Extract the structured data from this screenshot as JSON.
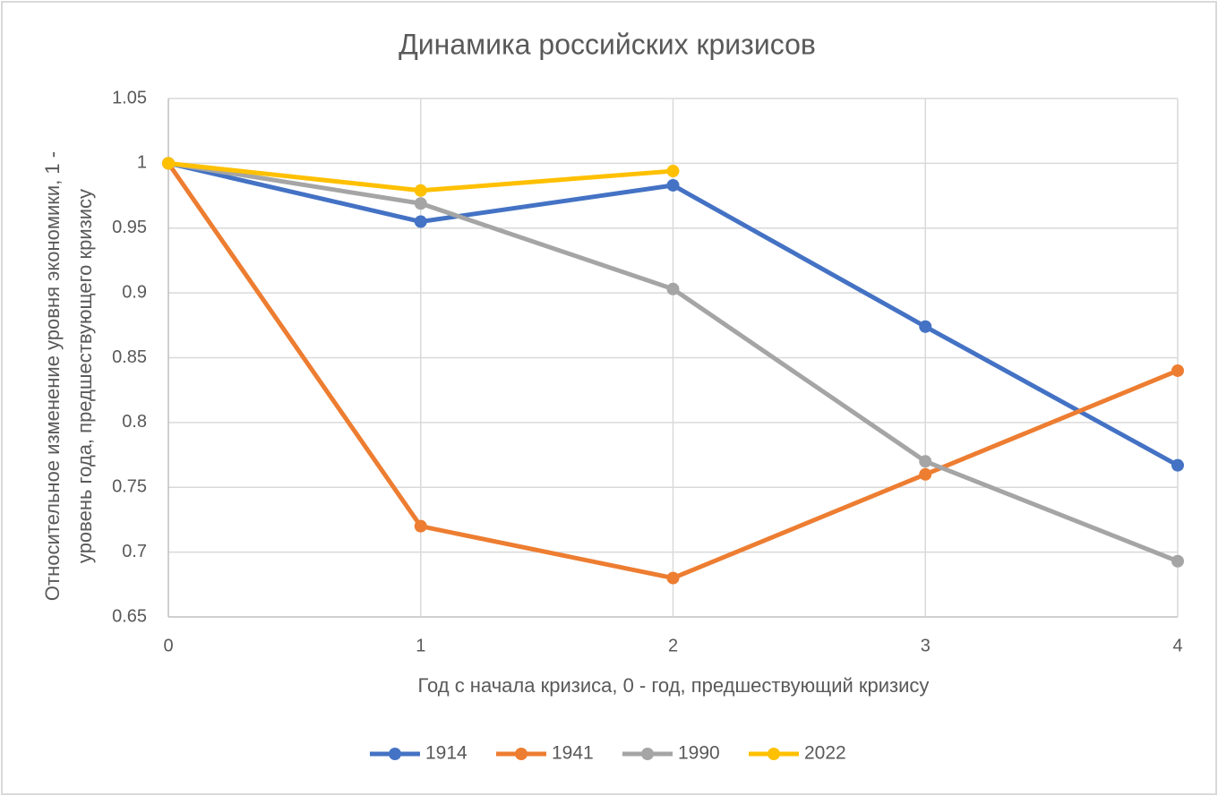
{
  "chart_data": {
    "type": "line",
    "title": "Динамика российских кризисов",
    "xlabel": "Год с начала кризиса, 0 - год, предшествующий кризису",
    "ylabel": [
      "Относительное изменение уровня экономики, 1 -",
      "уровень года, предшествующего кризису"
    ],
    "x": [
      0,
      1,
      2,
      3,
      4
    ],
    "series": [
      {
        "name": "1914",
        "color": "#4472c4",
        "values": [
          1,
          0.955,
          0.983,
          0.874,
          0.767
        ]
      },
      {
        "name": "1941",
        "color": "#ed7d31",
        "values": [
          1,
          0.72,
          0.68,
          0.76,
          0.84
        ]
      },
      {
        "name": "1990",
        "color": "#a5a5a5",
        "values": [
          1,
          0.969,
          0.903,
          0.77,
          0.693
        ]
      },
      {
        "name": "2022",
        "color": "#ffc000",
        "values": [
          1,
          0.979,
          0.994,
          null,
          null
        ]
      }
    ],
    "xlim": [
      0,
      4
    ],
    "xticks": [
      0,
      1,
      2,
      3,
      4
    ],
    "ylim": [
      0.65,
      1.05
    ],
    "yticks": [
      0.65,
      0.7,
      0.75,
      0.8,
      0.85,
      0.9,
      0.95,
      1,
      1.05
    ],
    "grid": true,
    "legend": "bottom"
  }
}
